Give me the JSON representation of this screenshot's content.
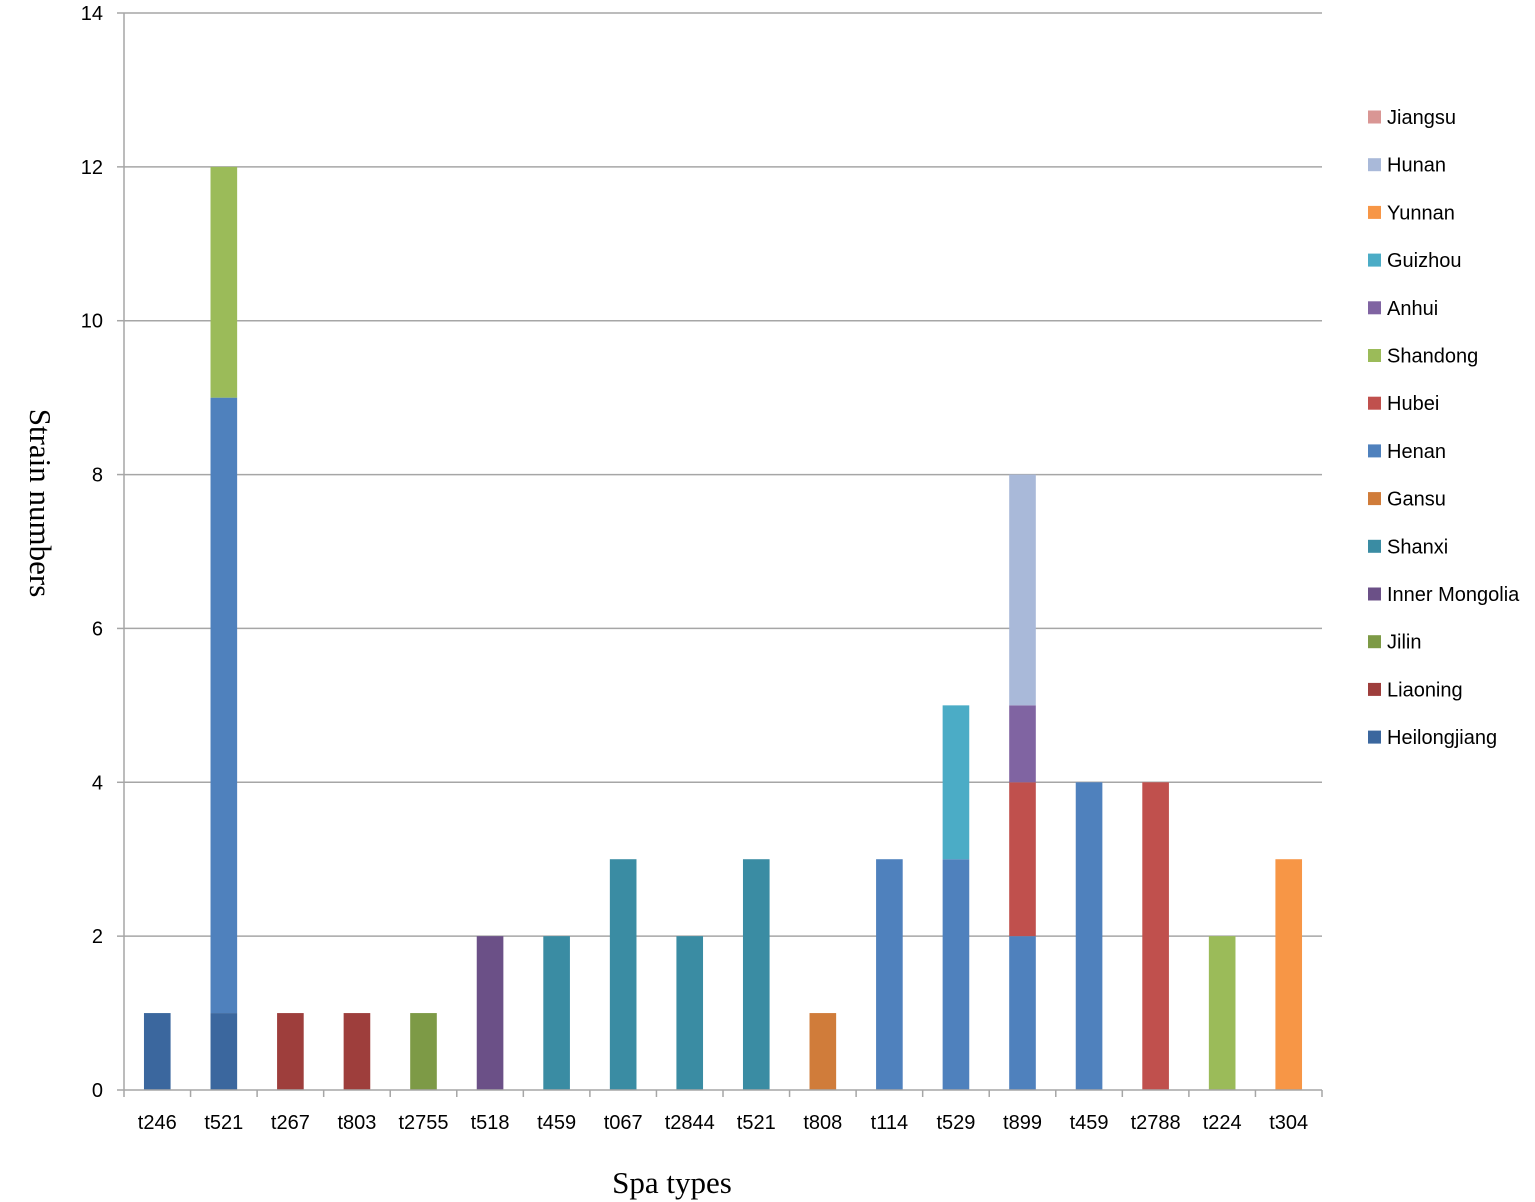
{
  "chart_data": {
    "type": "bar",
    "stacked": true,
    "xlabel": "Spa types",
    "ylabel": "Strain numbers",
    "ylim": [
      0,
      14
    ],
    "ytick_step": 2,
    "grid": true,
    "legend_position": "right",
    "categories": [
      "t246",
      "t521",
      "t267",
      "t803",
      "t2755",
      "t518",
      "t459",
      "t067",
      "t2844",
      "t521",
      "t808",
      "t114",
      "t529",
      "t899",
      "t459",
      "t2788",
      "t224",
      "t304"
    ],
    "series": [
      {
        "name": "Heilongjiang",
        "color": "#3B679E",
        "values": [
          1,
          1,
          0,
          0,
          0,
          0,
          0,
          0,
          0,
          0,
          0,
          0,
          0,
          0,
          0,
          0,
          0,
          0
        ]
      },
      {
        "name": "Liaoning",
        "color": "#9E3E3C",
        "values": [
          0,
          0,
          1,
          1,
          0,
          0,
          0,
          0,
          0,
          0,
          0,
          0,
          0,
          0,
          0,
          0,
          0,
          0
        ]
      },
      {
        "name": "Jilin",
        "color": "#7D9A46",
        "values": [
          0,
          0,
          0,
          0,
          1,
          0,
          0,
          0,
          0,
          0,
          0,
          0,
          0,
          0,
          0,
          0,
          0,
          0
        ]
      },
      {
        "name": "Inner Mongolia",
        "color": "#6B5087",
        "values": [
          0,
          0,
          0,
          0,
          0,
          2,
          0,
          0,
          0,
          0,
          0,
          0,
          0,
          0,
          0,
          0,
          0,
          0
        ]
      },
      {
        "name": "Shanxi",
        "color": "#3A8CA3",
        "values": [
          0,
          0,
          0,
          0,
          0,
          0,
          2,
          3,
          2,
          3,
          0,
          0,
          0,
          0,
          0,
          0,
          0,
          0
        ]
      },
      {
        "name": "Gansu",
        "color": "#D07C3A",
        "values": [
          0,
          0,
          0,
          0,
          0,
          0,
          0,
          0,
          0,
          0,
          1,
          0,
          0,
          0,
          0,
          0,
          0,
          0
        ]
      },
      {
        "name": "Henan",
        "color": "#4F81BD",
        "values": [
          0,
          8,
          0,
          0,
          0,
          0,
          0,
          0,
          0,
          0,
          0,
          3,
          3,
          2,
          4,
          0,
          0,
          0
        ]
      },
      {
        "name": "Hubei",
        "color": "#C0504D",
        "values": [
          0,
          0,
          0,
          0,
          0,
          0,
          0,
          0,
          0,
          0,
          0,
          0,
          0,
          2,
          0,
          4,
          0,
          0
        ]
      },
      {
        "name": "Shandong",
        "color": "#9BBB59",
        "values": [
          0,
          3,
          0,
          0,
          0,
          0,
          0,
          0,
          0,
          0,
          0,
          0,
          0,
          0,
          0,
          0,
          2,
          0
        ]
      },
      {
        "name": "Anhui",
        "color": "#8064A2",
        "values": [
          0,
          0,
          0,
          0,
          0,
          0,
          0,
          0,
          0,
          0,
          0,
          0,
          0,
          1,
          0,
          0,
          0,
          0
        ]
      },
      {
        "name": "Guizhou",
        "color": "#4BACC6",
        "values": [
          0,
          0,
          0,
          0,
          0,
          0,
          0,
          0,
          0,
          0,
          0,
          0,
          2,
          0,
          0,
          0,
          0,
          0
        ]
      },
      {
        "name": "Yunnan",
        "color": "#F79646",
        "values": [
          0,
          0,
          0,
          0,
          0,
          0,
          0,
          0,
          0,
          0,
          0,
          0,
          0,
          0,
          0,
          0,
          0,
          3
        ]
      },
      {
        "name": "Hunan",
        "color": "#A9B9D9",
        "values": [
          0,
          0,
          0,
          0,
          0,
          0,
          0,
          0,
          0,
          0,
          0,
          0,
          0,
          3,
          0,
          0,
          0,
          0
        ]
      },
      {
        "name": "Jiangsu",
        "color": "#D99694",
        "values": [
          0,
          0,
          0,
          0,
          0,
          0,
          0,
          0,
          0,
          0,
          0,
          0,
          0,
          0,
          0,
          0,
          0,
          0
        ]
      }
    ],
    "legend_order": [
      "Jiangsu",
      "Hunan",
      "Yunnan",
      "Guizhou",
      "Anhui",
      "Shandong",
      "Hubei",
      "Henan",
      "Gansu",
      "Shanxi",
      "Inner Mongolia",
      "Jilin",
      "Liaoning",
      "Heilongjiang"
    ]
  }
}
